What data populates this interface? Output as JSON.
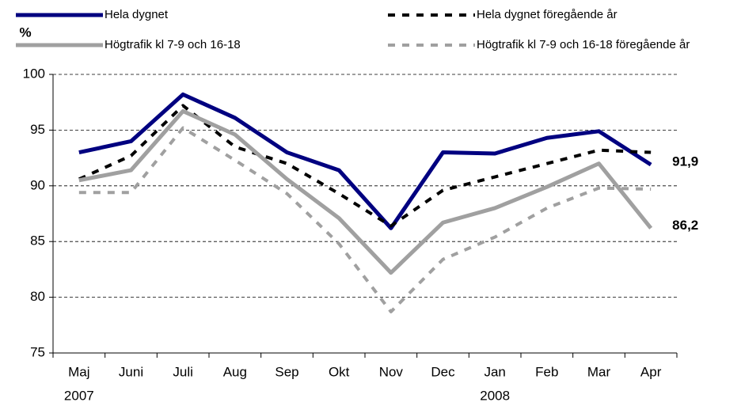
{
  "chart_data": {
    "type": "line",
    "y_label": "%",
    "categories": [
      "Maj",
      "Juni",
      "Juli",
      "Aug",
      "Sep",
      "Okt",
      "Nov",
      "Dec",
      "Jan",
      "Feb",
      "Mar",
      "Apr"
    ],
    "years": [
      "2007",
      null,
      null,
      null,
      null,
      null,
      null,
      null,
      "2008",
      null,
      null,
      null
    ],
    "ylim": [
      75,
      100
    ],
    "yticks": [
      75,
      80,
      85,
      90,
      95,
      100
    ],
    "grid": true,
    "series": [
      {
        "name": "Hela dygnet",
        "color": "#000080",
        "dash": false,
        "values": [
          93.0,
          94.0,
          98.2,
          96.1,
          93.0,
          91.4,
          86.2,
          93.0,
          92.9,
          94.3,
          94.9,
          91.9
        ],
        "value_labels": [
          null,
          null,
          null,
          null,
          null,
          null,
          null,
          null,
          null,
          null,
          null,
          "91,9"
        ]
      },
      {
        "name": "Hela dygnet föregående år",
        "color": "#000000",
        "dash": true,
        "values": [
          90.6,
          92.7,
          97.2,
          93.5,
          92.0,
          89.3,
          86.4,
          89.6,
          90.8,
          92.0,
          93.2,
          93.0
        ]
      },
      {
        "name": "Högtrafik kl 7-9 och 16-18",
        "color": "#a0a0a0",
        "dash": false,
        "values": [
          90.5,
          91.4,
          96.7,
          94.6,
          90.6,
          87.1,
          82.2,
          86.7,
          88.0,
          89.9,
          92.0,
          86.2
        ],
        "value_labels": [
          null,
          null,
          null,
          null,
          null,
          null,
          null,
          null,
          null,
          null,
          null,
          "86,2"
        ]
      },
      {
        "name": "Högtrafik kl 7-9 och 16-18 föregående år",
        "color": "#a0a0a0",
        "dash": true,
        "values": [
          89.4,
          89.4,
          95.2,
          92.3,
          89.3,
          84.8,
          78.7,
          83.4,
          85.4,
          88.0,
          89.8,
          89.7
        ]
      }
    ]
  }
}
